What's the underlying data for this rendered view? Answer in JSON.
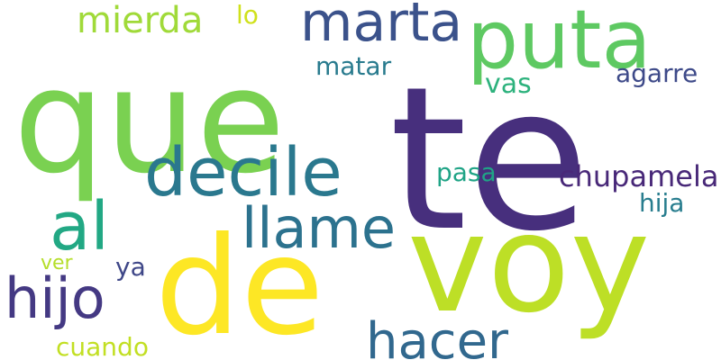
{
  "words": [
    {
      "id": "te",
      "text": "te",
      "color": "#472f7d"
    },
    {
      "id": "que",
      "text": "que",
      "color": "#7ad151"
    },
    {
      "id": "voy",
      "text": "voy",
      "color": "#bddf26"
    },
    {
      "id": "de",
      "text": "de",
      "color": "#fde725"
    },
    {
      "id": "puta",
      "text": "puta",
      "color": "#5ec962"
    },
    {
      "id": "decile",
      "text": "decile",
      "color": "#2a788e"
    },
    {
      "id": "marta",
      "text": "marta",
      "color": "#3b528b"
    },
    {
      "id": "al",
      "text": "al",
      "color": "#22a884"
    },
    {
      "id": "hijo",
      "text": "hijo",
      "color": "#443983"
    },
    {
      "id": "llame",
      "text": "llame",
      "color": "#2c728e"
    },
    {
      "id": "hacer",
      "text": "hacer",
      "color": "#31688e"
    },
    {
      "id": "mierda",
      "text": "mierda",
      "color": "#a0da39"
    },
    {
      "id": "lo",
      "text": "lo",
      "color": "#d0e11c"
    },
    {
      "id": "matar",
      "text": "matar",
      "color": "#297b8e"
    },
    {
      "id": "vas",
      "text": "vas",
      "color": "#2db27d"
    },
    {
      "id": "agarre",
      "text": "agarre",
      "color": "#3e4a89"
    },
    {
      "id": "chupamela",
      "text": "chupamela",
      "color": "#482878"
    },
    {
      "id": "pasa",
      "text": "pasa",
      "color": "#20a486"
    },
    {
      "id": "hija",
      "text": "hija",
      "color": "#287d8e"
    },
    {
      "id": "ver",
      "text": "ver",
      "color": "#b5de2b"
    },
    {
      "id": "ya",
      "text": "ya",
      "color": "#3f4788"
    },
    {
      "id": "cuando",
      "text": "cuando",
      "color": "#c2df23"
    }
  ]
}
